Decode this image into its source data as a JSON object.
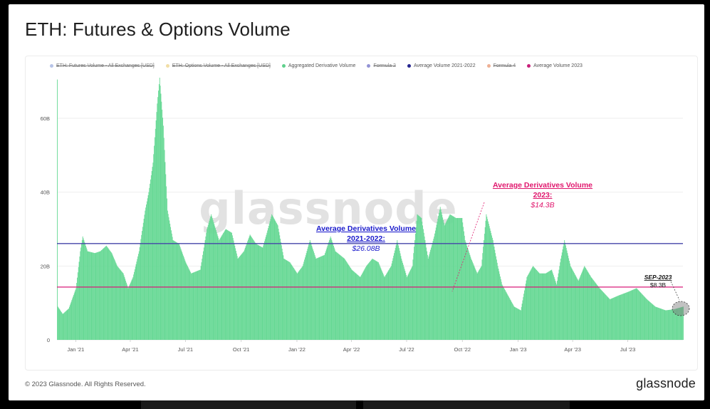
{
  "title": "ETH: Futures & Options Volume",
  "footer": {
    "copyright": "© 2023 Glassnode. All Rights Reserved.",
    "logo": "glassnode"
  },
  "watermark": "glassnode",
  "legend": [
    {
      "label": "ETH: Futures Volume - All Exchanges [USD]",
      "color": "#7b93d6",
      "active": false
    },
    {
      "label": "ETH: Options Volume - All Exchanges [USD]",
      "color": "#e6c35c",
      "active": false
    },
    {
      "label": "Aggregated Derivative Volume",
      "color": "#5fd08c",
      "active": true
    },
    {
      "label": "Formula 2",
      "color": "#3b3bb3",
      "active": false
    },
    {
      "label": "Average Volume 2021-2022",
      "color": "#25258f",
      "active": true
    },
    {
      "label": "Formula 4",
      "color": "#e0703c",
      "active": false
    },
    {
      "label": "Average Volume 2023",
      "color": "#c8207a",
      "active": true
    }
  ],
  "colors": {
    "bars": "#66d894",
    "avg_2021_2022": "#4545a8",
    "avg_2023": "#d81b7a",
    "annotation_blue": "#1a1acc",
    "annotation_pink": "#e0186e",
    "axis_text": "#555555",
    "grid": "#eeeeee"
  },
  "annotations": {
    "avg_2021_2022": {
      "title": "Average Derivatives Volume",
      "subtitle": "2021-2022:",
      "value": "$26.08B"
    },
    "avg_2023": {
      "title": "Average Derivatives Volume",
      "subtitle": "2023:",
      "value": "$14.3B"
    },
    "sep_2023": {
      "title": "SEP-2023",
      "value": "$8.3B"
    }
  },
  "chart_data": {
    "type": "bar",
    "title": "ETH: Futures & Options Volume",
    "xlabel": "",
    "ylabel": "",
    "x_ticks": [
      "Jan '21",
      "Apr '21",
      "Jul '21",
      "Oct '21",
      "Jan '22",
      "Apr '22",
      "Jul '22",
      "Oct '22",
      "Jan '23",
      "Apr '23",
      "Jul '23"
    ],
    "y_ticks": [
      "0",
      "20B",
      "40B",
      "60B"
    ],
    "ylim": [
      0,
      71
    ],
    "y_unit": "B USD",
    "x_start": "2020-12-01",
    "x_end": "2023-09-30",
    "grid": true,
    "legend_position": "top",
    "reference_lines": [
      {
        "name": "Average Volume 2021-2022",
        "value": 26.08
      },
      {
        "name": "Average Volume 2023",
        "value": 14.3
      }
    ],
    "series": [
      {
        "name": "Aggregated Derivative Volume",
        "points": [
          [
            "2020-12-01",
            70.5
          ],
          [
            "2020-12-02",
            9
          ],
          [
            "2020-12-10",
            7
          ],
          [
            "2020-12-20",
            8.5
          ],
          [
            "2021-01-01",
            14
          ],
          [
            "2021-01-08",
            24
          ],
          [
            "2021-01-12",
            28
          ],
          [
            "2021-01-20",
            24
          ],
          [
            "2021-02-01",
            23.5
          ],
          [
            "2021-02-10",
            24
          ],
          [
            "2021-02-20",
            25.5
          ],
          [
            "2021-03-01",
            23.5
          ],
          [
            "2021-03-10",
            20
          ],
          [
            "2021-03-20",
            18
          ],
          [
            "2021-03-28",
            14
          ],
          [
            "2021-04-05",
            17
          ],
          [
            "2021-04-15",
            24
          ],
          [
            "2021-04-25",
            35
          ],
          [
            "2021-05-01",
            40
          ],
          [
            "2021-05-08",
            48
          ],
          [
            "2021-05-15",
            64
          ],
          [
            "2021-05-19",
            71
          ],
          [
            "2021-05-25",
            58
          ],
          [
            "2021-06-01",
            35
          ],
          [
            "2021-06-10",
            27
          ],
          [
            "2021-06-20",
            26
          ],
          [
            "2021-07-01",
            21
          ],
          [
            "2021-07-10",
            18
          ],
          [
            "2021-07-25",
            19
          ],
          [
            "2021-08-05",
            30
          ],
          [
            "2021-08-12",
            34
          ],
          [
            "2021-08-25",
            27
          ],
          [
            "2021-09-05",
            30
          ],
          [
            "2021-09-15",
            29
          ],
          [
            "2021-09-25",
            22
          ],
          [
            "2021-10-05",
            24
          ],
          [
            "2021-10-15",
            28.5
          ],
          [
            "2021-10-25",
            26
          ],
          [
            "2021-11-05",
            25
          ],
          [
            "2021-11-12",
            29
          ],
          [
            "2021-11-20",
            34
          ],
          [
            "2021-11-30",
            31
          ],
          [
            "2021-12-10",
            22
          ],
          [
            "2021-12-20",
            21
          ],
          [
            "2022-01-01",
            18
          ],
          [
            "2022-01-10",
            20
          ],
          [
            "2022-01-22",
            27
          ],
          [
            "2022-02-01",
            22
          ],
          [
            "2022-02-15",
            23
          ],
          [
            "2022-02-25",
            28
          ],
          [
            "2022-03-05",
            24
          ],
          [
            "2022-03-20",
            22
          ],
          [
            "2022-04-01",
            19
          ],
          [
            "2022-04-15",
            17
          ],
          [
            "2022-04-25",
            20
          ],
          [
            "2022-05-05",
            22
          ],
          [
            "2022-05-15",
            21
          ],
          [
            "2022-05-25",
            17
          ],
          [
            "2022-06-05",
            20
          ],
          [
            "2022-06-15",
            27
          ],
          [
            "2022-06-22",
            22
          ],
          [
            "2022-07-01",
            17
          ],
          [
            "2022-07-10",
            20
          ],
          [
            "2022-07-18",
            34
          ],
          [
            "2022-07-25",
            33
          ],
          [
            "2022-08-05",
            22
          ],
          [
            "2022-08-15",
            28
          ],
          [
            "2022-08-25",
            36
          ],
          [
            "2022-09-01",
            31
          ],
          [
            "2022-09-10",
            34
          ],
          [
            "2022-09-20",
            33
          ],
          [
            "2022-09-30",
            33
          ],
          [
            "2022-10-05",
            27
          ],
          [
            "2022-10-15",
            22
          ],
          [
            "2022-10-25",
            18
          ],
          [
            "2022-11-01",
            20
          ],
          [
            "2022-11-09",
            34
          ],
          [
            "2022-11-20",
            27
          ],
          [
            "2022-11-28",
            20
          ],
          [
            "2022-12-05",
            15
          ],
          [
            "2022-12-15",
            12
          ],
          [
            "2022-12-25",
            9
          ],
          [
            "2023-01-05",
            8
          ],
          [
            "2023-01-15",
            17
          ],
          [
            "2023-01-25",
            20
          ],
          [
            "2023-02-05",
            18
          ],
          [
            "2023-02-15",
            18
          ],
          [
            "2023-02-25",
            19
          ],
          [
            "2023-03-05",
            15
          ],
          [
            "2023-03-12",
            22
          ],
          [
            "2023-03-18",
            27
          ],
          [
            "2023-03-28",
            20
          ],
          [
            "2023-04-10",
            16
          ],
          [
            "2023-04-20",
            20
          ],
          [
            "2023-05-01",
            17
          ],
          [
            "2023-05-15",
            14
          ],
          [
            "2023-06-01",
            11
          ],
          [
            "2023-06-15",
            12
          ],
          [
            "2023-07-01",
            13
          ],
          [
            "2023-07-15",
            14
          ],
          [
            "2023-08-01",
            11
          ],
          [
            "2023-08-15",
            9
          ],
          [
            "2023-09-01",
            8
          ],
          [
            "2023-09-15",
            8.3
          ],
          [
            "2023-09-30",
            9
          ]
        ]
      }
    ]
  }
}
